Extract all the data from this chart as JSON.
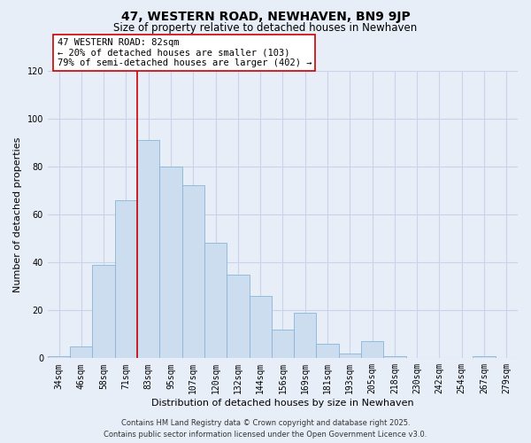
{
  "title": "47, WESTERN ROAD, NEWHAVEN, BN9 9JP",
  "subtitle": "Size of property relative to detached houses in Newhaven",
  "xlabel": "Distribution of detached houses by size in Newhaven",
  "ylabel": "Number of detached properties",
  "bar_labels": [
    "34sqm",
    "46sqm",
    "58sqm",
    "71sqm",
    "83sqm",
    "95sqm",
    "107sqm",
    "120sqm",
    "132sqm",
    "144sqm",
    "156sqm",
    "169sqm",
    "181sqm",
    "193sqm",
    "205sqm",
    "218sqm",
    "230sqm",
    "242sqm",
    "254sqm",
    "267sqm",
    "279sqm"
  ],
  "bar_values": [
    1,
    5,
    39,
    66,
    91,
    80,
    72,
    48,
    35,
    26,
    12,
    19,
    6,
    2,
    7,
    1,
    0,
    0,
    0,
    1,
    0
  ],
  "bar_color": "#ccddf0",
  "bar_edge_color": "#8ab4d8",
  "vline_index": 4,
  "vline_color": "#cc0000",
  "ylim": [
    0,
    120
  ],
  "yticks": [
    0,
    20,
    40,
    60,
    80,
    100,
    120
  ],
  "annotation_title": "47 WESTERN ROAD: 82sqm",
  "annotation_line1": "← 20% of detached houses are smaller (103)",
  "annotation_line2": "79% of semi-detached houses are larger (402) →",
  "footer1": "Contains HM Land Registry data © Crown copyright and database right 2025.",
  "footer2": "Contains public sector information licensed under the Open Government Licence v3.0.",
  "background_color": "#e8eef8",
  "grid_color": "#c8d4e8",
  "title_fontsize": 10,
  "subtitle_fontsize": 8.5,
  "axis_label_fontsize": 8,
  "tick_fontsize": 7,
  "annotation_fontsize": 7.5,
  "footer_fontsize": 6
}
